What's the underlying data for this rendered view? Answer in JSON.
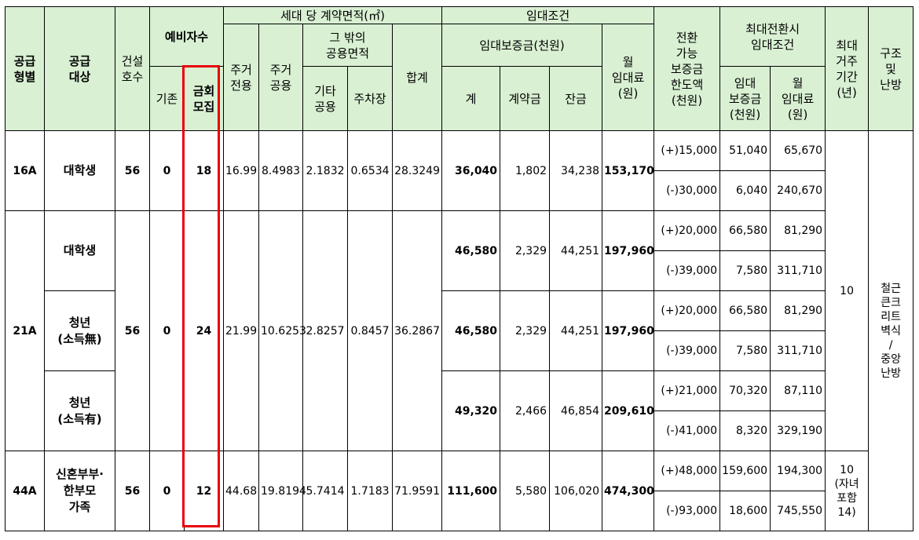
{
  "header": {
    "supply_type": "공급\n형별",
    "target": "공급\n대상",
    "built_units": "건설\n호수",
    "reserve": "예비자수",
    "reserve_existing": "기존",
    "reserve_new": "금회\n모집",
    "area_group": "세대 당 계약면적(㎡)",
    "area_private": "주거\n전용",
    "area_shared": "주거\n공용",
    "area_other_group": "그 밖의\n공용면적",
    "area_other": "기타\n공용",
    "area_parking": "주차장",
    "area_total": "합계",
    "rent_group": "임대조건",
    "deposit_group": "임대보증금(천원)",
    "deposit_total": "계",
    "deposit_contract": "계약금",
    "deposit_balance": "잔금",
    "monthly_rent": "월\n임대료\n(원)",
    "conversion": "전환\n가능\n보증금\n한도액\n(천원)",
    "max_conv_group": "최대전환시\n임대조건",
    "max_deposit": "임대\n보증금\n(천원)",
    "max_rent": "월\n임대료\n(원)",
    "max_period": "최대\n거주\n기간\n(년)",
    "structure": "구조\n및\n난방"
  },
  "rows": {
    "t16": {
      "type": "16A",
      "units": "56",
      "existing": "0",
      "new": "18",
      "private": "16.99",
      "shared": "8.4983",
      "other": "2.1832",
      "parking": "0.6534",
      "total": "28.3249",
      "g1": {
        "target": "대학생",
        "deposit": "36,040",
        "contract": "1,802",
        "balance": "34,238",
        "rent": "153,170",
        "conv_up": "(+)15,000",
        "dep_up": "51,040",
        "rent_up": "65,670",
        "conv_dn": "(-)30,000",
        "dep_dn": "6,040",
        "rent_dn": "240,670"
      }
    },
    "t21": {
      "type": "21A",
      "units": "56",
      "existing": "0",
      "new": "24",
      "private": "21.99",
      "shared": "10.6253",
      "other": "2.8257",
      "parking": "0.8457",
      "total": "36.2867",
      "g1": {
        "target": "대학생",
        "deposit": "46,580",
        "contract": "2,329",
        "balance": "44,251",
        "rent": "197,960",
        "conv_up": "(+)20,000",
        "dep_up": "66,580",
        "rent_up": "81,290",
        "conv_dn": "(-)39,000",
        "dep_dn": "7,580",
        "rent_dn": "311,710"
      },
      "g2": {
        "target": "청년\n(소득無)",
        "deposit": "46,580",
        "contract": "2,329",
        "balance": "44,251",
        "rent": "197,960",
        "conv_up": "(+)20,000",
        "dep_up": "66,580",
        "rent_up": "81,290",
        "conv_dn": "(-)39,000",
        "dep_dn": "7,580",
        "rent_dn": "311,710"
      },
      "g3": {
        "target": "청년\n(소득有)",
        "deposit": "49,320",
        "contract": "2,466",
        "balance": "46,854",
        "rent": "209,610",
        "conv_up": "(+)21,000",
        "dep_up": "70,320",
        "rent_up": "87,110",
        "conv_dn": "(-)41,000",
        "dep_dn": "8,320",
        "rent_dn": "329,190"
      }
    },
    "t44": {
      "type": "44A",
      "units": "56",
      "existing": "0",
      "new": "12",
      "private": "44.68",
      "shared": "19.8194",
      "other": "5.7414",
      "parking": "1.7183",
      "total": "71.9591",
      "g1": {
        "target": "신혼부부·\n한부모\n가족",
        "deposit": "111,600",
        "contract": "5,580",
        "balance": "106,020",
        "rent": "474,300",
        "conv_up": "(+)48,000",
        "dep_up": "159,600",
        "rent_up": "194,300",
        "conv_dn": "(-)93,000",
        "dep_dn": "18,600",
        "rent_dn": "745,550"
      }
    }
  },
  "period_main": "10",
  "period_44": "10\n(자녀\n포함\n14)",
  "structure_value": "철근\n큰크\n리트\n벽식\n/\n중앙\n난방",
  "highlight_color": "#e8000b",
  "header_bg": "#d9f0d3"
}
